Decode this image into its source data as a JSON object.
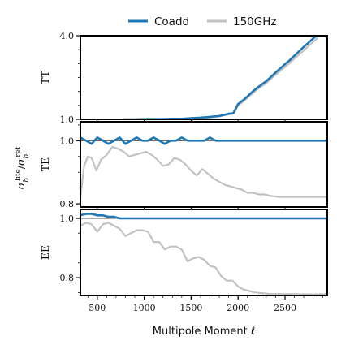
{
  "colors": {
    "coadd": "#1f77b4",
    "ref150": "#c2c2c2",
    "refline": "#555555",
    "axes": "#000000"
  },
  "legend": {
    "placement": "top-center",
    "entries": [
      "Coadd",
      "150GHz"
    ]
  },
  "ylabel_common": {
    "main": "σ",
    "sub": "b",
    "sup_lite": "lite",
    "slash": "/",
    "sup_ref": "ref"
  },
  "chart_data": [
    {
      "type": "line",
      "panel": "TT",
      "ylabel": "TT",
      "yscale": "linear",
      "ylim": [
        1.0,
        4.0
      ],
      "yticks": [
        1.0,
        4.0
      ],
      "ytick_labels": [
        "1.0",
        "4.0"
      ],
      "reference_line": 1.0,
      "xlim": [
        320,
        2950
      ],
      "series": [
        {
          "name": "Coadd",
          "x": [
            780,
            900,
            1000,
            1100,
            1200,
            1300,
            1400,
            1500,
            1600,
            1700,
            1800,
            1900,
            1950,
            2000,
            2050,
            2100,
            2150,
            2200,
            2250,
            2300,
            2350,
            2400,
            2450,
            2500,
            2550,
            2600,
            2650,
            2700,
            2750,
            2800,
            2850
          ],
          "y": [
            1.0,
            1.0,
            1.01,
            1.01,
            1.01,
            1.02,
            1.02,
            1.04,
            1.06,
            1.09,
            1.12,
            1.2,
            1.22,
            1.55,
            1.68,
            1.82,
            1.98,
            2.12,
            2.25,
            2.37,
            2.52,
            2.68,
            2.83,
            2.98,
            3.12,
            3.28,
            3.44,
            3.6,
            3.75,
            3.9,
            4.05
          ]
        },
        {
          "name": "150GHz",
          "x": [
            780,
            900,
            1000,
            1100,
            1200,
            1300,
            1400,
            1500,
            1600,
            1700,
            1800,
            1900,
            1950,
            2000,
            2050,
            2100,
            2150,
            2200,
            2250,
            2300,
            2350,
            2400,
            2450,
            2500,
            2550,
            2600,
            2650,
            2700,
            2750,
            2800,
            2850
          ],
          "y": [
            1.0,
            1.0,
            1.0,
            1.01,
            1.01,
            1.01,
            1.02,
            1.03,
            1.05,
            1.07,
            1.11,
            1.18,
            1.2,
            1.5,
            1.63,
            1.77,
            1.92,
            2.06,
            2.18,
            2.3,
            2.45,
            2.6,
            2.74,
            2.88,
            3.02,
            3.18,
            3.33,
            3.48,
            3.63,
            3.78,
            3.93
          ]
        }
      ]
    },
    {
      "type": "line",
      "panel": "TE",
      "ylabel": "TE",
      "yscale": "linear",
      "ylim": [
        0.79,
        1.06
      ],
      "yticks": [
        0.8,
        1.0
      ],
      "ytick_labels": [
        "0.8",
        "1.0"
      ],
      "reference_line": 1.0,
      "xlim": [
        320,
        2950
      ],
      "series": [
        {
          "name": "Coadd",
          "x": [
            320,
            380,
            440,
            500,
            560,
            620,
            680,
            740,
            800,
            860,
            920,
            980,
            1040,
            1100,
            1160,
            1220,
            1280,
            1340,
            1400,
            1460,
            1520,
            1580,
            1640,
            1700,
            1760,
            1820,
            1880,
            1940,
            2000,
            2100,
            2200,
            2300,
            2400,
            2500,
            2600,
            2700,
            2800,
            2900,
            2950
          ],
          "y": [
            1.01,
            1.0,
            0.99,
            1.01,
            1.0,
            0.99,
            1.0,
            1.01,
            0.99,
            1.0,
            1.01,
            1.0,
            1.0,
            1.01,
            1.0,
            0.99,
            1.0,
            1.0,
            1.01,
            1.0,
            1.0,
            1.0,
            1.0,
            1.01,
            1.0,
            1.0,
            1.0,
            1.0,
            1.0,
            1.0,
            1.0,
            1.0,
            1.0,
            1.0,
            1.0,
            1.0,
            1.0,
            1.0,
            1.0
          ]
        },
        {
          "name": "150GHz",
          "x": [
            320,
            360,
            400,
            440,
            490,
            540,
            600,
            660,
            720,
            780,
            840,
            900,
            960,
            1020,
            1080,
            1140,
            1200,
            1260,
            1320,
            1380,
            1440,
            1500,
            1560,
            1620,
            1680,
            1740,
            1800,
            1860,
            1920,
            1980,
            2040,
            2100,
            2160,
            2220,
            2280,
            2350,
            2450,
            2550,
            2650,
            2750,
            2850,
            2950
          ],
          "y": [
            0.82,
            0.92,
            0.95,
            0.945,
            0.905,
            0.94,
            0.955,
            0.98,
            0.975,
            0.965,
            0.95,
            0.955,
            0.96,
            0.965,
            0.955,
            0.94,
            0.92,
            0.925,
            0.945,
            0.94,
            0.925,
            0.905,
            0.89,
            0.91,
            0.895,
            0.88,
            0.87,
            0.86,
            0.855,
            0.85,
            0.845,
            0.835,
            0.835,
            0.83,
            0.83,
            0.825,
            0.822,
            0.822,
            0.822,
            0.822,
            0.822,
            0.822
          ]
        }
      ]
    },
    {
      "type": "line",
      "panel": "EE",
      "ylabel": "EE",
      "yscale": "linear",
      "ylim": [
        0.74,
        1.03
      ],
      "yticks": [
        0.8,
        1.0
      ],
      "ytick_labels": [
        "0.8",
        "1.0"
      ],
      "reference_line": 1.0,
      "xlim": [
        320,
        2950
      ],
      "series": [
        {
          "name": "Coadd",
          "x": [
            320,
            380,
            440,
            500,
            560,
            620,
            680,
            740,
            800,
            860,
            920,
            980,
            1040,
            1100,
            1160,
            1220,
            1280,
            1340,
            1400,
            1460,
            1520,
            1580,
            1640,
            1700,
            1760,
            1820,
            1880,
            1940,
            2000,
            2100,
            2200,
            2300,
            2400,
            2500,
            2600,
            2700,
            2800,
            2900,
            2950
          ],
          "y": [
            1.01,
            1.015,
            1.015,
            1.01,
            1.01,
            1.005,
            1.005,
            1.0,
            1.0,
            1.0,
            1.0,
            1.0,
            1.0,
            1.0,
            1.0,
            1.0,
            1.0,
            1.0,
            1.0,
            1.0,
            1.0,
            1.0,
            1.0,
            1.0,
            1.0,
            1.0,
            1.0,
            1.0,
            1.0,
            1.0,
            1.0,
            1.0,
            1.0,
            1.0,
            1.0,
            1.0,
            1.0,
            1.0,
            1.0
          ]
        },
        {
          "name": "150GHz",
          "x": [
            320,
            380,
            440,
            500,
            560,
            620,
            680,
            740,
            800,
            860,
            920,
            980,
            1040,
            1100,
            1160,
            1220,
            1280,
            1340,
            1400,
            1460,
            1520,
            1580,
            1640,
            1700,
            1760,
            1820,
            1880,
            1940,
            2000,
            2060,
            2120,
            2180,
            2250,
            2350,
            2450,
            2550,
            2650,
            2750,
            2850,
            2950
          ],
          "y": [
            0.975,
            0.985,
            0.98,
            0.955,
            0.98,
            0.985,
            0.975,
            0.965,
            0.94,
            0.95,
            0.96,
            0.96,
            0.955,
            0.92,
            0.92,
            0.895,
            0.905,
            0.905,
            0.895,
            0.855,
            0.865,
            0.87,
            0.86,
            0.84,
            0.835,
            0.805,
            0.79,
            0.79,
            0.77,
            0.76,
            0.755,
            0.75,
            0.748,
            0.745,
            0.745,
            0.745,
            0.744,
            0.744,
            0.744,
            0.744
          ]
        }
      ]
    }
  ],
  "x_axis": {
    "label": "Multipole Moment ℓ",
    "ticks": [
      500,
      1000,
      1500,
      2000,
      2500
    ],
    "tick_labels": [
      "500",
      "1000",
      "1500",
      "2000",
      "2500"
    ],
    "minor_step": 100
  }
}
